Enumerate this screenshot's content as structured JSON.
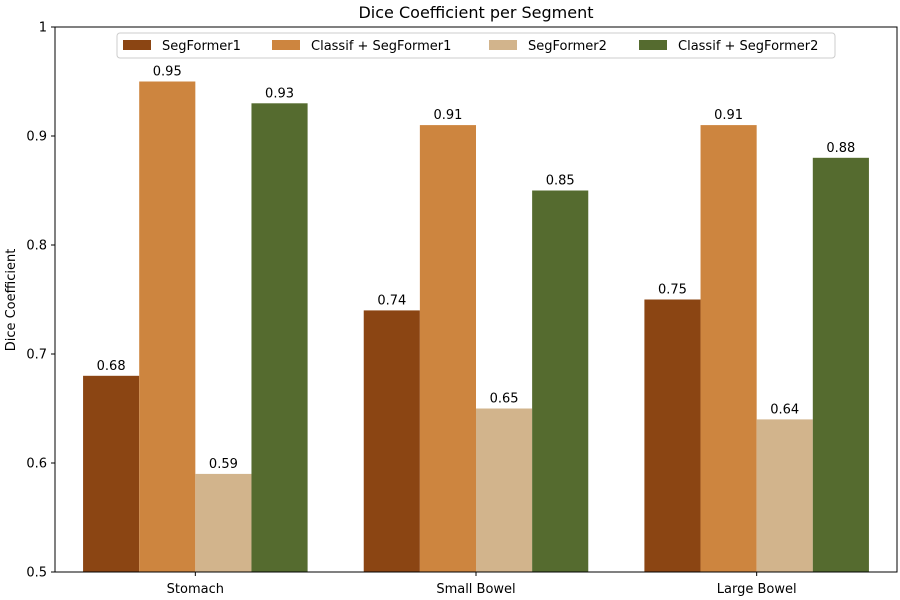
{
  "chart_data": {
    "type": "bar",
    "title": "Dice Coefficient per Segment",
    "xlabel": "",
    "ylabel": "Dice Coefficient",
    "categories": [
      "Stomach",
      "Small Bowel",
      "Large Bowel"
    ],
    "series": [
      {
        "name": "SegFormer1",
        "color": "#8b4513",
        "values": [
          0.68,
          0.74,
          0.75
        ]
      },
      {
        "name": "Classif + SegFormer1",
        "color": "#cd853f",
        "values": [
          0.95,
          0.91,
          0.91
        ]
      },
      {
        "name": "SegFormer2",
        "color": "#d2b48c",
        "values": [
          0.59,
          0.65,
          0.64
        ]
      },
      {
        "name": "Classif + SegFormer2",
        "color": "#556b2f",
        "values": [
          0.93,
          0.85,
          0.88
        ]
      }
    ],
    "ylim": [
      0.5,
      1.0
    ],
    "yticks": [
      0.5,
      0.6,
      0.7,
      0.8,
      0.9,
      1.0
    ],
    "grid": false,
    "legend_position": "top-center",
    "data_labels": true
  }
}
